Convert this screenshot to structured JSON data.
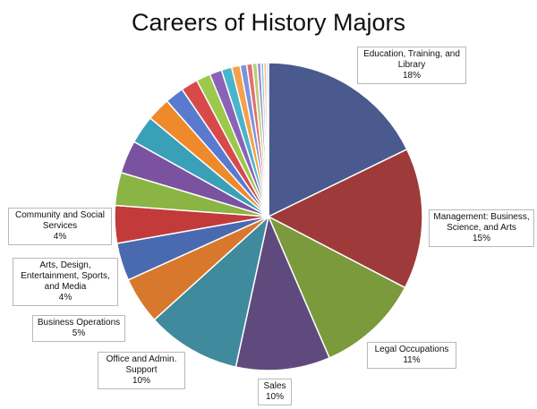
{
  "chart_data": {
    "type": "pie",
    "title": "Careers of History Majors",
    "start_angle_deg": 0,
    "direction": "clockwise",
    "slices": [
      {
        "label": "Education, Training, and Library",
        "value": 18,
        "value_label": "18%",
        "color": "#4a5a8e"
      },
      {
        "label": "Management: Business, Science, and Arts",
        "value": 15,
        "value_label": "15%",
        "color": "#9e3a3a"
      },
      {
        "label": "Legal Occupations",
        "value": 11,
        "value_label": "11%",
        "color": "#7a9a3c"
      },
      {
        "label": "Sales",
        "value": 10,
        "value_label": "10%",
        "color": "#5f4a7e"
      },
      {
        "label": "Office and Admin. Support",
        "value": 10,
        "value_label": "10%",
        "color": "#3f8a9c"
      },
      {
        "label": "Business Operations",
        "value": 5,
        "value_label": "5%",
        "color": "#d8782c"
      },
      {
        "label": "Arts, Design, Entertainment, Sports, and Media",
        "value": 4,
        "value_label": "4%",
        "color": "#4a6ab0"
      },
      {
        "label": "Community and Social Services",
        "value": 4,
        "value_label": "4%",
        "color": "#c23a3a"
      },
      {
        "label": "",
        "value": 3.5,
        "value_label": "",
        "color": "#8ab444"
      },
      {
        "label": "",
        "value": 3.5,
        "value_label": "",
        "color": "#7a52a0"
      },
      {
        "label": "",
        "value": 3,
        "value_label": "",
        "color": "#3aa0b8"
      },
      {
        "label": "",
        "value": 2.5,
        "value_label": "",
        "color": "#ee8a2c"
      },
      {
        "label": "",
        "value": 2,
        "value_label": "",
        "color": "#5a7ad0"
      },
      {
        "label": "",
        "value": 1.8,
        "value_label": "",
        "color": "#d84a4a"
      },
      {
        "label": "",
        "value": 1.5,
        "value_label": "",
        "color": "#9cc84c"
      },
      {
        "label": "",
        "value": 1.3,
        "value_label": "",
        "color": "#8c62b8"
      },
      {
        "label": "",
        "value": 1.1,
        "value_label": "",
        "color": "#4ab4cc"
      },
      {
        "label": "",
        "value": 0.9,
        "value_label": "",
        "color": "#f6a04a"
      },
      {
        "label": "",
        "value": 0.7,
        "value_label": "",
        "color": "#7a94dc"
      },
      {
        "label": "",
        "value": 0.6,
        "value_label": "",
        "color": "#e07070"
      },
      {
        "label": "",
        "value": 0.5,
        "value_label": "",
        "color": "#b4d07a"
      },
      {
        "label": "",
        "value": 0.4,
        "value_label": "",
        "color": "#a888cc"
      },
      {
        "label": "",
        "value": 0.3,
        "value_label": "",
        "color": "#7acae0"
      },
      {
        "label": "",
        "value": 0.3,
        "value_label": "",
        "color": "#f8bc80"
      },
      {
        "label": "",
        "value": 0.2,
        "value_label": "",
        "color": "#a0b4e8"
      }
    ]
  }
}
